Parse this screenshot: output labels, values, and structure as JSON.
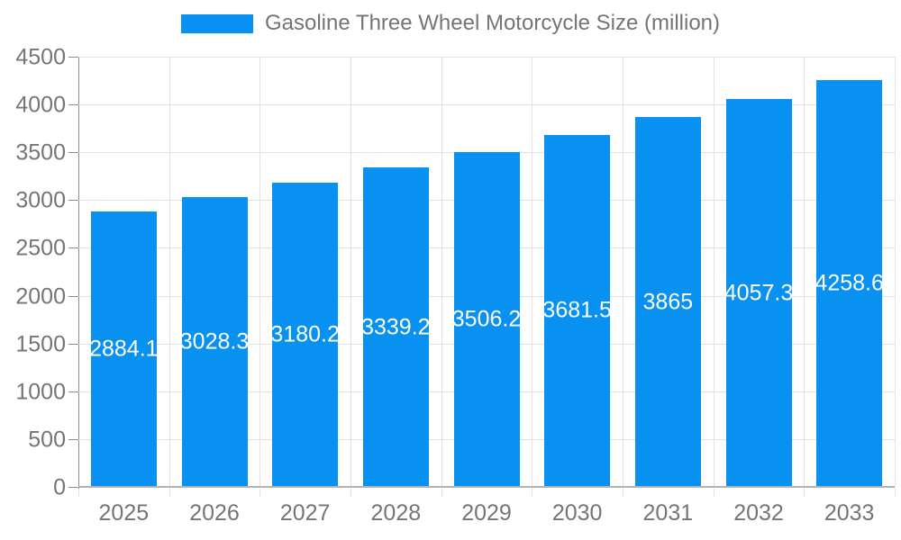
{
  "legend": {
    "label": "Gasoline Three Wheel Motorcycle Size (million)"
  },
  "colors": {
    "background": "#ffffff",
    "bar": "#0991f2",
    "bar_label": "#ffffff",
    "grid": "#e2e2e2",
    "y_axis": "#8c8c8c",
    "x_axis": "#b3b3b3",
    "text": "#757575"
  },
  "chart_data": {
    "type": "bar",
    "title": "",
    "legend": "Gasoline Three Wheel Motorcycle Size (million)",
    "legend_position": "top",
    "categories": [
      "2025",
      "2026",
      "2027",
      "2028",
      "2029",
      "2030",
      "2031",
      "2032",
      "2033"
    ],
    "values": [
      2884.1,
      3028.3,
      3180.2,
      3339.2,
      3506.2,
      3681.5,
      3865,
      4057.3,
      4258.6
    ],
    "value_labels": [
      "2884.1",
      "3028.3",
      "3180.2",
      "3339.2",
      "3506.2",
      "3681.5",
      "3865",
      "4057.3",
      "4258.6"
    ],
    "xlabel": "",
    "ylabel": "",
    "ylim": [
      0,
      4500
    ],
    "ytick_step": 500,
    "yticks": [
      0,
      500,
      1000,
      1500,
      2000,
      2500,
      3000,
      3500,
      4000,
      4500
    ],
    "grid": true,
    "bar_label_position": "center-inside"
  }
}
